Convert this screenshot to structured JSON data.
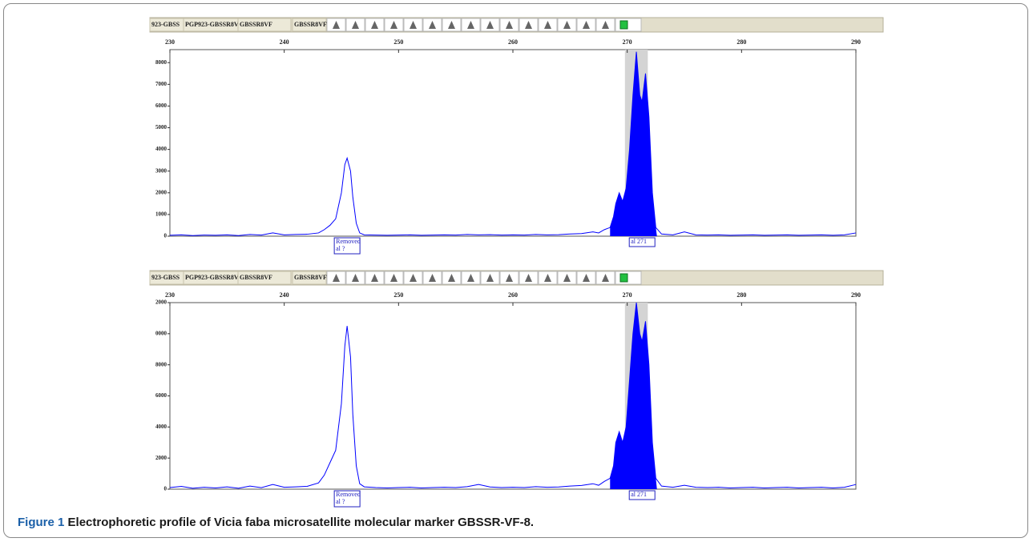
{
  "chart_data": [
    {
      "type": "line",
      "header": [
        "923-GBSS",
        "PGP923-GBSSR8V",
        "GBSSR8VF",
        "GBSSR8VF"
      ],
      "xlim": [
        230,
        290
      ],
      "xticks": [
        230,
        240,
        250,
        260,
        270,
        280,
        290
      ],
      "ylim": [
        0,
        8600
      ],
      "yticks": [
        0,
        1000,
        2000,
        3000,
        4000,
        5000,
        6000,
        7000,
        8000
      ],
      "color": "#0000ff",
      "bin": [
        269.8,
        271.8
      ],
      "filled_range": [
        268.5,
        272.6
      ],
      "allele_labels": [
        {
          "text": [
            "Removed",
            "al ?"
          ],
          "x": 245.5
        },
        {
          "text": [
            "al 271"
          ],
          "x": 271.3
        }
      ],
      "x": [
        230,
        231,
        232,
        233,
        234,
        235,
        236,
        237,
        238,
        239,
        240,
        241,
        242,
        243,
        243.5,
        244,
        244.5,
        245,
        245.3,
        245.5,
        245.8,
        246,
        246.3,
        246.6,
        247,
        248,
        249,
        250,
        251,
        252,
        253,
        254,
        255,
        256,
        257,
        258,
        259,
        260,
        261,
        262,
        263,
        264,
        265,
        266,
        267,
        267.5,
        268,
        268.5,
        268.8,
        269,
        269.3,
        269.6,
        269.9,
        270.2,
        270.5,
        270.8,
        271.1,
        271.3,
        271.6,
        271.9,
        272.2,
        272.5,
        273,
        274,
        275,
        276,
        277,
        278,
        279,
        280,
        281,
        282,
        283,
        284,
        285,
        286,
        287,
        288,
        289,
        290
      ],
      "values": [
        40,
        60,
        30,
        50,
        40,
        60,
        30,
        80,
        50,
        150,
        60,
        80,
        90,
        150,
        300,
        500,
        800,
        2000,
        3300,
        3600,
        3000,
        1800,
        600,
        150,
        60,
        50,
        40,
        50,
        60,
        40,
        50,
        60,
        50,
        80,
        60,
        70,
        50,
        60,
        50,
        80,
        60,
        70,
        100,
        120,
        200,
        150,
        300,
        400,
        900,
        1500,
        2000,
        1600,
        2200,
        4000,
        6500,
        8500,
        6500,
        6200,
        7500,
        5500,
        2000,
        400,
        100,
        60,
        200,
        60,
        50,
        60,
        40,
        50,
        60,
        40,
        50,
        60,
        40,
        50,
        60,
        40,
        60,
        150
      ]
    },
    {
      "type": "line",
      "header": [
        "923-GBSS",
        "PGP923-GBSSR8V",
        "GBSSR8VF",
        "GBSSR8VF"
      ],
      "xlim": [
        230,
        290
      ],
      "xticks": [
        230,
        240,
        250,
        260,
        270,
        280,
        290
      ],
      "ylim": [
        0,
        12000
      ],
      "yticks": [
        0,
        2000,
        4000,
        6000,
        8000,
        {
          "value": 10000,
          "label": "0000"
        },
        {
          "value": 12000,
          "label": "2000"
        }
      ],
      "color": "#0000ff",
      "bin": [
        269.8,
        271.8
      ],
      "filled_range": [
        268.5,
        272.6
      ],
      "allele_labels": [
        {
          "text": [
            "Removed",
            "al ?"
          ],
          "x": 245.5
        },
        {
          "text": [
            "al 271"
          ],
          "x": 271.3
        }
      ],
      "x": [
        230,
        231,
        232,
        233,
        234,
        235,
        236,
        237,
        238,
        239,
        240,
        241,
        242,
        243,
        243.5,
        244,
        244.5,
        245,
        245.3,
        245.5,
        245.8,
        246,
        246.3,
        246.6,
        247,
        248,
        249,
        250,
        251,
        252,
        253,
        254,
        255,
        256,
        257,
        258,
        259,
        260,
        261,
        262,
        263,
        264,
        265,
        266,
        267,
        267.5,
        268,
        268.5,
        268.8,
        269,
        269.3,
        269.6,
        269.9,
        270.2,
        270.5,
        270.8,
        271.1,
        271.3,
        271.6,
        271.9,
        272.2,
        272.5,
        273,
        274,
        275,
        276,
        277,
        278,
        279,
        280,
        281,
        282,
        283,
        284,
        285,
        286,
        287,
        288,
        289,
        290
      ],
      "values": [
        100,
        180,
        60,
        120,
        80,
        150,
        60,
        200,
        100,
        300,
        120,
        150,
        180,
        400,
        900,
        1700,
        2500,
        5500,
        9200,
        10500,
        8500,
        4800,
        1500,
        350,
        150,
        100,
        80,
        100,
        120,
        80,
        100,
        120,
        100,
        160,
        300,
        140,
        100,
        120,
        100,
        160,
        120,
        140,
        200,
        240,
        350,
        250,
        500,
        700,
        1500,
        3000,
        3700,
        3000,
        4000,
        7000,
        10000,
        12000,
        10000,
        9500,
        10800,
        8000,
        3000,
        700,
        200,
        120,
        250,
        120,
        100,
        120,
        80,
        100,
        120,
        80,
        100,
        120,
        80,
        100,
        120,
        80,
        120,
        300
      ]
    }
  ],
  "caption": {
    "label": "Figure 1",
    "text": "Electrophoretic profile of Vicia faba microsatellite molecular marker GBSSR-VF-8."
  }
}
